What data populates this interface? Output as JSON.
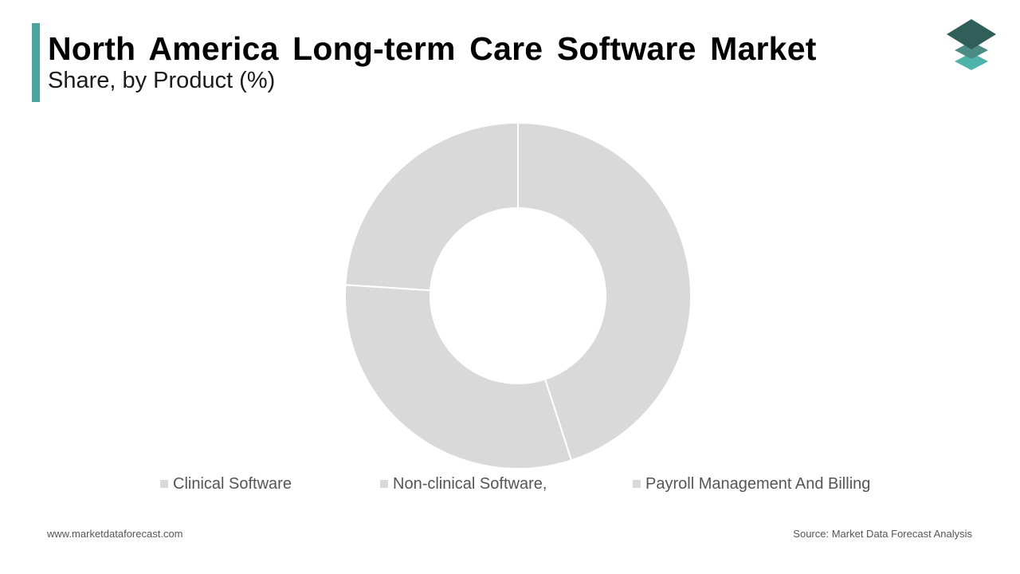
{
  "header": {
    "title": "North America Long-term Care Software Market",
    "subtitle": "Share, by Product (%)"
  },
  "chart_data": {
    "type": "pie",
    "title": "North America Long-term Care Software Market",
    "subtitle": "Share, by Product (%)",
    "donut": true,
    "categories": [
      "Clinical Software",
      "Non-clinical Software,",
      "Payroll Management And Billing"
    ],
    "values": [
      45,
      31,
      24
    ],
    "legend_position": "bottom"
  },
  "colors": {
    "accent": "#4aa3a0",
    "slice": "#d9d9d9",
    "separator": "#ffffff",
    "logo_dark": "#2f5f58",
    "logo_mid": "#4d8c84",
    "logo_light": "#4fb3ac"
  },
  "footer": {
    "website": "www.marketdataforecast.com",
    "source": "Source: Market Data Forecast Analysis"
  }
}
